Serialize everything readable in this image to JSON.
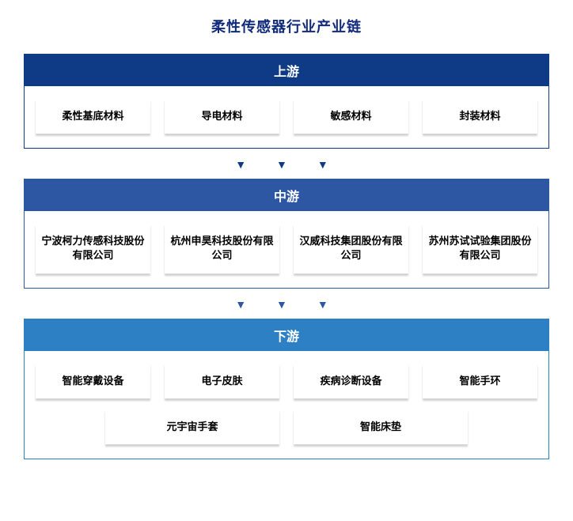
{
  "colors": {
    "title_color": "#102a7c",
    "upstream_header_bg": "#0f3a85",
    "upstream_border": "#0f3a85",
    "midstream_header_bg": "#2d56a3",
    "midstream_border": "#2d56a3",
    "downstream_header_bg": "#2d80c4",
    "downstream_border": "#2d80c4",
    "arrow_color_mid": "#0f3a85",
    "arrow_color_down": "#2d56a3",
    "card_text": "#000000"
  },
  "title": "柔性传感器行业产业链",
  "upstream": {
    "header": "上游",
    "items": [
      "柔性基底材料",
      "导电材料",
      "敏感材料",
      "封装材料"
    ]
  },
  "midstream": {
    "header": "中游",
    "items": [
      "宁波柯力传感科技股份有限公司",
      "杭州申昊科技股份有限公司",
      "汉威科技集团股份有限公司",
      "苏州苏试试验集团股份有限公司"
    ]
  },
  "downstream": {
    "header": "下游",
    "row1": [
      "智能穿戴设备",
      "电子皮肤",
      "疾病诊断设备",
      "智能手环"
    ],
    "row2": [
      "元宇宙手套",
      "智能床垫"
    ]
  },
  "arrow_glyph": "▼　▼　▼"
}
